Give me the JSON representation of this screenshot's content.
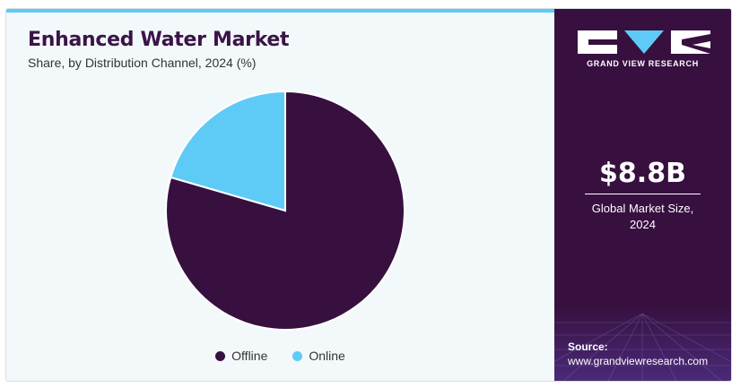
{
  "chart_data": {
    "type": "pie",
    "title": "Enhanced Water Market",
    "subtitle": "Share, by Distribution Channel, 2024 (%)",
    "categories": [
      "Offline",
      "Online"
    ],
    "values": [
      79.5,
      20.5
    ],
    "colors": [
      "#37103f",
      "#5ecbf6"
    ],
    "legend_position": "bottom"
  },
  "sidebar": {
    "brand": "GRAND VIEW RESEARCH",
    "market_size_value": "$8.8B",
    "market_size_label_line1": "Global Market Size,",
    "market_size_label_line2": "2024",
    "source_label": "Source:",
    "source_url": "www.grandviewresearch.com"
  }
}
